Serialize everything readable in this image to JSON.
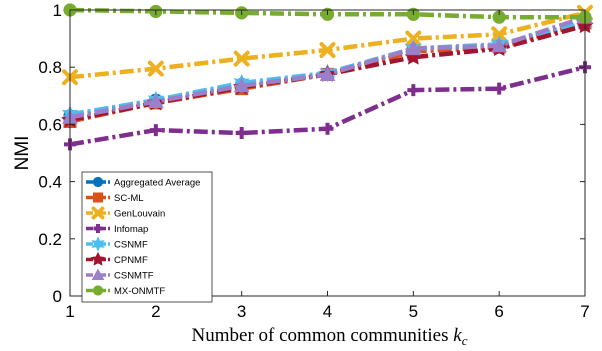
{
  "chart_data": {
    "type": "line",
    "title": "",
    "xlabel": "Number of common communities ",
    "xlabel_var": "k",
    "xlabel_sub": "c",
    "ylabel": "NMI",
    "x": [
      1,
      2,
      3,
      4,
      5,
      6,
      7
    ],
    "xlim": [
      1,
      7
    ],
    "ylim": [
      0,
      1
    ],
    "x_ticks": [
      "1",
      "2",
      "3",
      "4",
      "5",
      "6",
      "7"
    ],
    "y_ticks": [
      "0",
      "0.2",
      "0.4",
      "0.6",
      "0.8",
      "1"
    ],
    "grid": false,
    "legend_position": "bottom-left",
    "series": [
      {
        "name": "Aggregated Average",
        "color": "#0072BD",
        "marker": "circle",
        "values": [
          0.63,
          0.685,
          0.74,
          0.775,
          0.865,
          0.875,
          0.955
        ]
      },
      {
        "name": "SC-ML",
        "color": "#D95319",
        "marker": "square",
        "values": [
          0.61,
          0.675,
          0.725,
          0.775,
          0.855,
          0.87,
          0.955
        ]
      },
      {
        "name": "GenLouvain",
        "color": "#EDB120",
        "marker": "x",
        "values": [
          0.765,
          0.795,
          0.83,
          0.86,
          0.9,
          0.915,
          0.99
        ]
      },
      {
        "name": "Infomap",
        "color": "#7E2F8E",
        "marker": "plus",
        "values": [
          0.53,
          0.58,
          0.57,
          0.585,
          0.72,
          0.725,
          0.8
        ]
      },
      {
        "name": "CSNMF",
        "color": "#4DBEEE",
        "marker": "hexagram",
        "values": [
          0.635,
          0.685,
          0.745,
          0.78,
          0.865,
          0.88,
          0.955
        ]
      },
      {
        "name": "CPNMF",
        "color": "#A2142F",
        "marker": "star",
        "values": [
          0.615,
          0.675,
          0.73,
          0.775,
          0.835,
          0.865,
          0.945
        ]
      },
      {
        "name": "CSNMTF",
        "color": "#9B7FC9",
        "marker": "triangle",
        "values": [
          0.625,
          0.68,
          0.735,
          0.775,
          0.865,
          0.875,
          0.975
        ]
      },
      {
        "name": "MX-ONMTF",
        "color": "#77AC30",
        "marker": "circle",
        "values": [
          1.0,
          0.995,
          0.99,
          0.985,
          0.985,
          0.975,
          0.975
        ]
      }
    ]
  }
}
